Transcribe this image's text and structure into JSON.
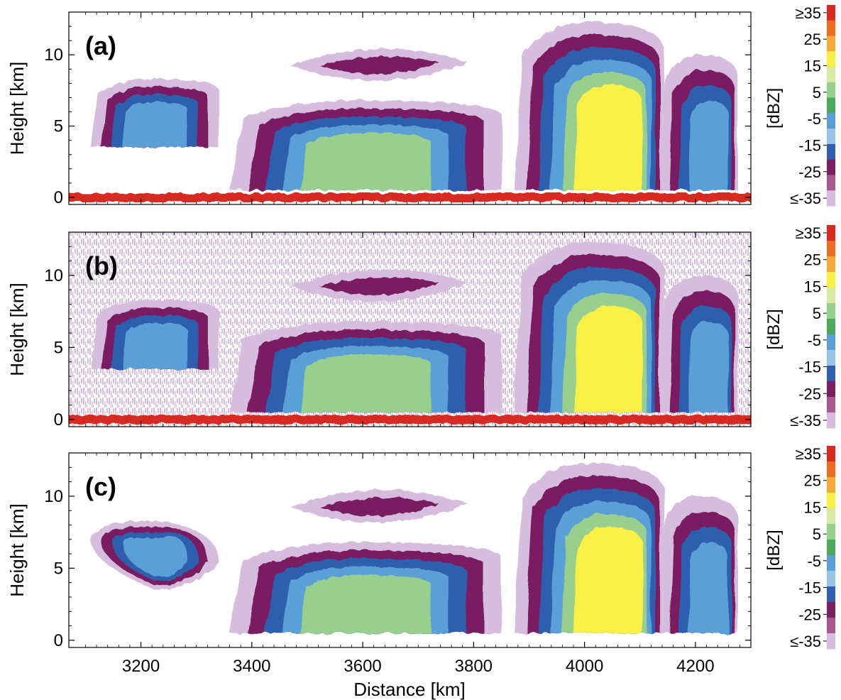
{
  "figure": {
    "xlabel": "Distance [km]",
    "ylabel": "Height [km]",
    "colorbar_label": "[dBZ]"
  },
  "colorbar": {
    "tick_labels": [
      "≥35",
      "25",
      "15",
      "5",
      "-5",
      "-15",
      "-25",
      "≤-35"
    ],
    "colors": [
      "#d62a22",
      "#ee6a24",
      "#f6a83a",
      "#f8ef46",
      "#d6e8a2",
      "#99cf8e",
      "#4ca85a",
      "#5aa0d6",
      "#9cc4e8",
      "#2f5fae",
      "#7a1f62",
      "#a8588c",
      "#d7bddd"
    ]
  },
  "chart_data": [
    {
      "type": "heatmap",
      "panel_label": "(a)",
      "xlim": [
        3070,
        4300
      ],
      "ylim": [
        -0.5,
        13
      ],
      "x_ticks": [
        "3200",
        "3400",
        "3600",
        "3800",
        "4000",
        "4200"
      ],
      "y_ticks": [
        "0",
        "5",
        "10"
      ],
      "colorbar_range_dBZ": [
        -35,
        35
      ],
      "background_noise": false,
      "surface_clutter": true,
      "features": [
        {
          "feature": "surface return",
          "x": [
            3070,
            4300
          ],
          "y": [
            -0.3,
            0.3
          ],
          "dBZ": 35
        },
        {
          "feature": "cloud",
          "x": [
            3110,
            3340
          ],
          "y": [
            3.5,
            8.3
          ],
          "max_dBZ": -5
        },
        {
          "feature": "cloud",
          "x": [
            3360,
            3850
          ],
          "y": [
            0.5,
            6.8
          ],
          "max_dBZ": 5
        },
        {
          "feature": "anvil",
          "x": [
            3470,
            3790
          ],
          "y": [
            7,
            11.5
          ],
          "max_dBZ": -25
        },
        {
          "feature": "convective tower",
          "x": [
            3860,
            4130
          ],
          "y": [
            0.5,
            12.3
          ],
          "max_dBZ": 15
        },
        {
          "feature": "cells",
          "x": [
            4130,
            4270
          ],
          "y": [
            0.5,
            10
          ],
          "max_dBZ": -5
        }
      ]
    },
    {
      "type": "heatmap",
      "panel_label": "(b)",
      "xlim": [
        3070,
        4300
      ],
      "ylim": [
        -0.5,
        13
      ],
      "x_ticks": [
        "3200",
        "3400",
        "3600",
        "3800",
        "4000",
        "4200"
      ],
      "y_ticks": [
        "0",
        "5",
        "10"
      ],
      "colorbar_range_dBZ": [
        -35,
        35
      ],
      "background_noise": true,
      "surface_clutter": true,
      "features": [
        {
          "feature": "surface return",
          "x": [
            3070,
            4300
          ],
          "y": [
            -0.3,
            0.3
          ],
          "dBZ": 35
        },
        {
          "feature": "cloud",
          "x": [
            3110,
            3340
          ],
          "y": [
            3.5,
            8.3
          ],
          "max_dBZ": -5
        },
        {
          "feature": "cloud",
          "x": [
            3360,
            3850
          ],
          "y": [
            0.5,
            6.8
          ],
          "max_dBZ": 5
        },
        {
          "feature": "anvil",
          "x": [
            3470,
            3790
          ],
          "y": [
            7,
            11.5
          ],
          "max_dBZ": -25
        },
        {
          "feature": "convective tower",
          "x": [
            3860,
            4130
          ],
          "y": [
            0.5,
            12.3
          ],
          "max_dBZ": 15
        },
        {
          "feature": "cells",
          "x": [
            4130,
            4270
          ],
          "y": [
            0.5,
            10
          ],
          "max_dBZ": -5
        }
      ]
    },
    {
      "type": "heatmap",
      "panel_label": "(c)",
      "xlim": [
        3070,
        4300
      ],
      "ylim": [
        -0.5,
        13
      ],
      "x_ticks": [
        "3200",
        "3400",
        "3600",
        "3800",
        "4000",
        "4200"
      ],
      "y_ticks": [
        "0",
        "5",
        "10"
      ],
      "colorbar_range_dBZ": [
        -35,
        35
      ],
      "background_noise": false,
      "surface_clutter": false,
      "features": [
        {
          "feature": "cloud",
          "x": [
            3110,
            3340
          ],
          "y": [
            3.5,
            8.3
          ],
          "max_dBZ": -5
        },
        {
          "feature": "cloud",
          "x": [
            3360,
            3850
          ],
          "y": [
            0.5,
            6.8
          ],
          "max_dBZ": 5
        },
        {
          "feature": "anvil",
          "x": [
            3470,
            3790
          ],
          "y": [
            7,
            11.5
          ],
          "max_dBZ": -25
        },
        {
          "feature": "convective tower",
          "x": [
            3860,
            4130
          ],
          "y": [
            0.5,
            12.3
          ],
          "max_dBZ": 15
        },
        {
          "feature": "cells",
          "x": [
            4130,
            4270
          ],
          "y": [
            0.5,
            10
          ],
          "max_dBZ": -5
        }
      ]
    }
  ]
}
